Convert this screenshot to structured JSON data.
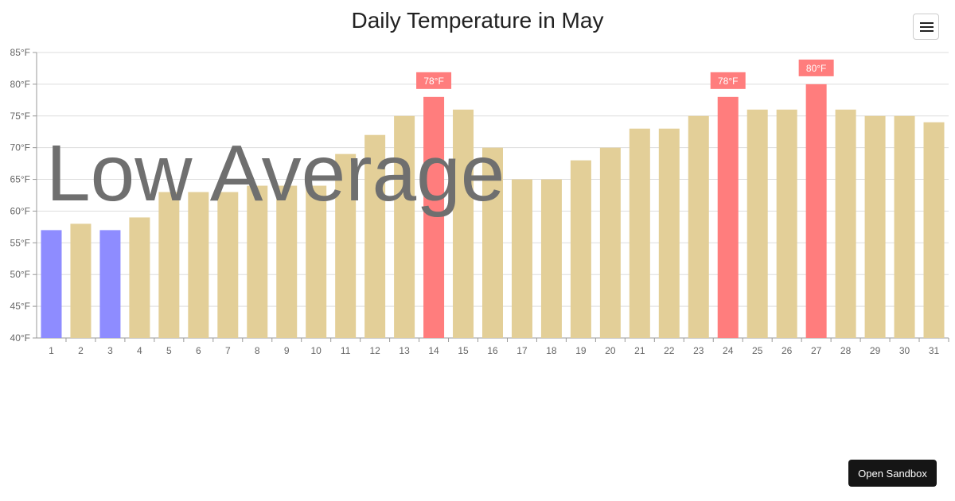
{
  "chart_data": {
    "type": "bar",
    "title": "Daily Temperature in May",
    "xlabel": "",
    "ylabel": "",
    "unit": "°F",
    "ylim": [
      40,
      85
    ],
    "y_ticks": [
      "40°F",
      "45°F",
      "50°F",
      "55°F",
      "60°F",
      "65°F",
      "70°F",
      "75°F",
      "80°F",
      "85°F"
    ],
    "grid": true,
    "categories": [
      "1",
      "2",
      "3",
      "4",
      "5",
      "6",
      "7",
      "8",
      "9",
      "10",
      "11",
      "12",
      "13",
      "14",
      "15",
      "16",
      "17",
      "18",
      "19",
      "20",
      "21",
      "22",
      "23",
      "24",
      "25",
      "26",
      "27",
      "28",
      "29",
      "30",
      "31"
    ],
    "values": [
      57,
      58,
      57,
      59,
      63,
      63,
      63,
      64,
      64,
      64,
      69,
      72,
      75,
      78,
      76,
      70,
      65,
      65,
      68,
      70,
      73,
      73,
      75,
      78,
      76,
      76,
      80,
      76,
      75,
      75,
      74
    ],
    "colors": {
      "normal": "#e3cf98",
      "low": "#8e8cff",
      "high": "#ff7d7d"
    },
    "low_days": [
      "1",
      "3"
    ],
    "high_days": [
      "14",
      "24",
      "27"
    ],
    "data_labels": [
      {
        "category": "14",
        "text": "78°F"
      },
      {
        "category": "24",
        "text": "78°F"
      },
      {
        "category": "27",
        "text": "80°F"
      }
    ],
    "annotation": "Low Average"
  },
  "toolbar": {
    "menu_icon": "hamburger-icon",
    "sandbox_label": "Open Sandbox"
  }
}
